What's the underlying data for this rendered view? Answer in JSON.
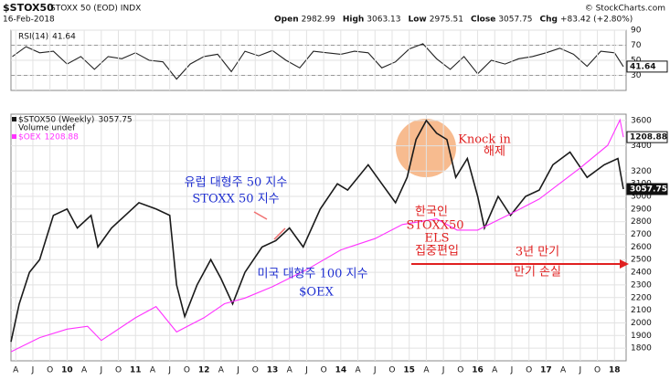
{
  "header": {
    "symbol": "$STOX50",
    "name": "STOXX 50 (EOD) INDX",
    "date": "16-Feb-2018",
    "source": "© StockCharts.com",
    "quote": [
      {
        "label": "Open",
        "value": 2982.99
      },
      {
        "label": "High",
        "value": 3063.13
      },
      {
        "label": "Low",
        "value": 2975.51
      },
      {
        "label": "Close",
        "value": 3057.75
      },
      {
        "label": "Chg",
        "value": "+83.42 (+2.80%)"
      }
    ]
  },
  "chart_data": [
    {
      "type": "line",
      "title": "RSI(14)",
      "xlim": [
        2009.18,
        2018.17
      ],
      "ylim": [
        10,
        90
      ],
      "yticks": [
        30,
        50,
        70,
        90
      ],
      "ref_lines": [
        30,
        70
      ],
      "grid": true,
      "series": [
        {
          "name": "RSI(14)",
          "color": "#222222",
          "x": [
            2009.2,
            2009.4,
            2009.6,
            2009.8,
            2010.0,
            2010.2,
            2010.4,
            2010.6,
            2010.8,
            2011.0,
            2011.2,
            2011.4,
            2011.6,
            2011.8,
            2012.0,
            2012.2,
            2012.4,
            2012.6,
            2012.8,
            2013.0,
            2013.2,
            2013.4,
            2013.6,
            2013.8,
            2014.0,
            2014.2,
            2014.4,
            2014.6,
            2014.8,
            2015.0,
            2015.2,
            2015.4,
            2015.6,
            2015.8,
            2016.0,
            2016.2,
            2016.4,
            2016.6,
            2016.8,
            2017.0,
            2017.2,
            2017.4,
            2017.6,
            2017.8,
            2018.0,
            2018.13
          ],
          "values": [
            55,
            68,
            60,
            62,
            45,
            55,
            38,
            55,
            52,
            60,
            50,
            48,
            25,
            45,
            55,
            58,
            35,
            62,
            56,
            63,
            50,
            40,
            62,
            60,
            58,
            62,
            60,
            40,
            48,
            65,
            72,
            52,
            38,
            55,
            32,
            50,
            45,
            52,
            55,
            60,
            66,
            58,
            42,
            62,
            60,
            41.64
          ]
        }
      ]
    },
    {
      "type": "line",
      "xlim": [
        2009.18,
        2018.17
      ],
      "ylim": [
        1700,
        3650
      ],
      "y2lim": [
        418,
        1290
      ],
      "grid": true,
      "yticks": [
        1800,
        1900,
        2000,
        2100,
        2200,
        2300,
        2400,
        2500,
        2600,
        2700,
        2800,
        2900,
        3000,
        3100,
        3200,
        3400,
        3600
      ],
      "xticks": [
        {
          "value": 2009.25,
          "label": "A"
        },
        {
          "value": 2009.5,
          "label": "J"
        },
        {
          "value": 2009.75,
          "label": "O"
        },
        {
          "value": 2010,
          "label": "10"
        },
        {
          "value": 2010.25,
          "label": "A"
        },
        {
          "value": 2010.5,
          "label": "J"
        },
        {
          "value": 2010.75,
          "label": "O"
        },
        {
          "value": 2011,
          "label": "11"
        },
        {
          "value": 2011.25,
          "label": "A"
        },
        {
          "value": 2011.5,
          "label": "J"
        },
        {
          "value": 2011.75,
          "label": "O"
        },
        {
          "value": 2012,
          "label": "12"
        },
        {
          "value": 2012.25,
          "label": "A"
        },
        {
          "value": 2012.5,
          "label": "J"
        },
        {
          "value": 2012.75,
          "label": "O"
        },
        {
          "value": 2013,
          "label": "13"
        },
        {
          "value": 2013.25,
          "label": "A"
        },
        {
          "value": 2013.5,
          "label": "J"
        },
        {
          "value": 2013.75,
          "label": "O"
        },
        {
          "value": 2014,
          "label": "14"
        },
        {
          "value": 2014.25,
          "label": "A"
        },
        {
          "value": 2014.5,
          "label": "J"
        },
        {
          "value": 2014.75,
          "label": "O"
        },
        {
          "value": 2015,
          "label": "15"
        },
        {
          "value": 2015.25,
          "label": "A"
        },
        {
          "value": 2015.5,
          "label": "J"
        },
        {
          "value": 2015.75,
          "label": "O"
        },
        {
          "value": 2016,
          "label": "16"
        },
        {
          "value": 2016.25,
          "label": "A"
        },
        {
          "value": 2016.5,
          "label": "J"
        },
        {
          "value": 2016.75,
          "label": "O"
        },
        {
          "value": 2017,
          "label": "17"
        },
        {
          "value": 2017.25,
          "label": "A"
        },
        {
          "value": 2017.5,
          "label": "J"
        },
        {
          "value": 2017.75,
          "label": "O"
        },
        {
          "value": 2018,
          "label": "18"
        }
      ],
      "volume_label": "Volume undef",
      "series": [
        {
          "name": "$STOX50 (Weekly)",
          "color": "#1a1a1a",
          "x": [
            2009.18,
            2009.3,
            2009.45,
            2009.6,
            2009.8,
            2010.0,
            2010.15,
            2010.35,
            2010.45,
            2010.65,
            2010.85,
            2011.05,
            2011.3,
            2011.5,
            2011.6,
            2011.72,
            2011.9,
            2012.1,
            2012.25,
            2012.42,
            2012.6,
            2012.85,
            2013.05,
            2013.25,
            2013.45,
            2013.7,
            2013.95,
            2014.1,
            2014.4,
            2014.6,
            2014.8,
            2014.97,
            2015.1,
            2015.25,
            2015.4,
            2015.55,
            2015.68,
            2015.85,
            2016.0,
            2016.1,
            2016.3,
            2016.48,
            2016.7,
            2016.9,
            2017.1,
            2017.35,
            2017.6,
            2017.85,
            2018.05,
            2018.13
          ],
          "values": [
            1850,
            2150,
            2400,
            2500,
            2850,
            2900,
            2750,
            2850,
            2600,
            2750,
            2850,
            2950,
            2900,
            2850,
            2300,
            2050,
            2300,
            2500,
            2350,
            2150,
            2400,
            2600,
            2650,
            2750,
            2600,
            2900,
            3100,
            3050,
            3250,
            3100,
            2950,
            3150,
            3450,
            3600,
            3500,
            3450,
            3150,
            3300,
            3000,
            2750,
            3000,
            2850,
            3000,
            3050,
            3250,
            3350,
            3150,
            3250,
            3300,
            3057.75
          ]
        },
        {
          "name": "$OEX",
          "color": "#ff33ff",
          "axis": "y2",
          "x": [
            2009.18,
            2009.6,
            2010.0,
            2010.3,
            2010.5,
            2011.0,
            2011.3,
            2011.6,
            2012.0,
            2012.3,
            2012.6,
            2013.0,
            2013.5,
            2014.0,
            2014.5,
            2014.9,
            2015.4,
            2015.7,
            2016.0,
            2016.5,
            2016.9,
            2017.5,
            2017.9,
            2018.08,
            2018.13
          ],
          "values": [
            450,
            500,
            530,
            540,
            490,
            570,
            610,
            520,
            570,
            620,
            640,
            680,
            740,
            810,
            850,
            900,
            920,
            880,
            880,
            940,
            990,
            1100,
            1180,
            1270,
            1208.88
          ]
        }
      ],
      "annotations": [
        {
          "text": "유럽 대형주 50 지수",
          "color": "#1f2fd0"
        },
        {
          "text": "STOXX 50 지수",
          "color": "#1f2fd0"
        },
        {
          "text": "미국 대형주 100 지수",
          "color": "#1f2fd0"
        },
        {
          "text": "$OEX",
          "color": "#1f2fd0"
        },
        {
          "text": "Knock in",
          "color": "#e02020"
        },
        {
          "text": "해제",
          "color": "#e02020"
        },
        {
          "text": "한국인",
          "color": "#e02020"
        },
        {
          "text": "STOXX50",
          "color": "#e02020"
        },
        {
          "text": "ELS",
          "color": "#e02020"
        },
        {
          "text": "집중편입",
          "color": "#e02020"
        },
        {
          "text": "3년 만기",
          "color": "#e02020"
        },
        {
          "text": "만기 손실",
          "color": "#e02020"
        }
      ]
    }
  ]
}
